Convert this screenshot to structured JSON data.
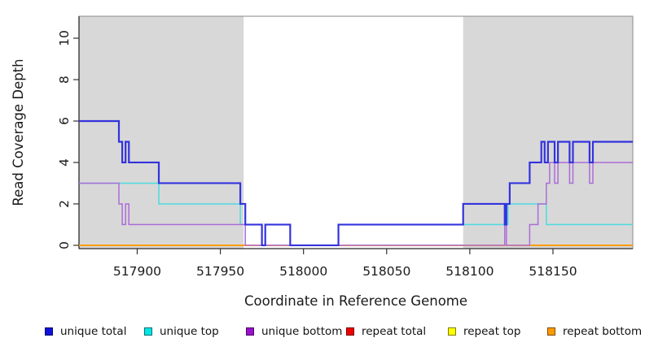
{
  "chart_data": {
    "type": "line",
    "subtype": "step-coverage",
    "x_title": "Coordinate in Reference Genome",
    "y_title": "Read Coverage Depth",
    "xlim": [
      517865,
      518198
    ],
    "ylim": [
      -0.16,
      11.06
    ],
    "x_ticks": [
      517900,
      517950,
      518000,
      518050,
      518100,
      518150
    ],
    "y_ticks": [
      0,
      2,
      4,
      6,
      8,
      10
    ],
    "grid": false,
    "legend_position": "bottom",
    "plot_bg": "#ffffff",
    "shaded_regions": [
      {
        "name": "left-shaded-region",
        "from": 517865,
        "to": 517964,
        "color": "#d8d8d8"
      },
      {
        "name": "right-shaded-region",
        "from": 518096,
        "to": 518198,
        "color": "#d8d8d8"
      }
    ],
    "box_color": "#999999",
    "axis_color": "#333333",
    "series": [
      {
        "name": "repeat top",
        "color": "#ffee00",
        "width": 1.5,
        "steps": [
          [
            517865,
            0
          ]
        ]
      },
      {
        "name": "repeat total",
        "color": "#d75f6d",
        "width": 1.5,
        "steps": [
          [
            517865,
            0
          ]
        ],
        "visible_range": [
          517964,
          518096
        ]
      },
      {
        "name": "repeat bottom",
        "color": "#ff9800",
        "width": 1.8,
        "steps": [
          [
            517865,
            0
          ]
        ]
      },
      {
        "name": "unique top",
        "color": "#4ddbe0",
        "width": 1.5,
        "steps": [
          [
            517865,
            3
          ],
          [
            517913,
            2
          ],
          [
            517962,
            1
          ],
          [
            517975,
            0
          ],
          [
            517977,
            1
          ],
          [
            517992,
            0
          ],
          [
            518021,
            1
          ],
          [
            518123,
            2
          ],
          [
            518146,
            1
          ]
        ]
      },
      {
        "name": "unique bottom",
        "color": "#ab6cd8",
        "width": 1.5,
        "steps": [
          [
            517865,
            3
          ],
          [
            517889,
            2
          ],
          [
            517891,
            1
          ],
          [
            517893,
            2
          ],
          [
            517895,
            1
          ],
          [
            517965,
            0
          ],
          [
            518121,
            1
          ],
          [
            518122,
            0
          ],
          [
            518136,
            1
          ],
          [
            518141,
            2
          ],
          [
            518146,
            3
          ],
          [
            518148,
            4
          ],
          [
            518151,
            3
          ],
          [
            518153,
            4
          ],
          [
            518160,
            3
          ],
          [
            518162,
            4
          ],
          [
            518172,
            3
          ],
          [
            518174,
            4
          ]
        ]
      },
      {
        "name": "unique total",
        "color": "#3333dd",
        "width": 2.2,
        "steps": [
          [
            517865,
            6
          ],
          [
            517889,
            5
          ],
          [
            517891,
            4
          ],
          [
            517893,
            5
          ],
          [
            517895,
            4
          ],
          [
            517913,
            3
          ],
          [
            517962,
            2
          ],
          [
            517965,
            1
          ],
          [
            517975,
            0
          ],
          [
            517977,
            1
          ],
          [
            517992,
            0
          ],
          [
            518021,
            1
          ],
          [
            518096,
            2
          ],
          [
            518121,
            1
          ],
          [
            518122,
            2
          ],
          [
            518124,
            3
          ],
          [
            518136,
            4
          ],
          [
            518143,
            5
          ],
          [
            518145,
            4
          ],
          [
            518147,
            5
          ],
          [
            518151,
            4
          ],
          [
            518153,
            5
          ],
          [
            518160,
            4
          ],
          [
            518162,
            5
          ],
          [
            518172,
            4
          ],
          [
            518174,
            5
          ]
        ]
      }
    ]
  },
  "legend": {
    "items": [
      {
        "label": "unique total",
        "color": "#1111dd"
      },
      {
        "label": "unique top",
        "color": "#00e5e5"
      },
      {
        "label": "unique bottom",
        "color": "#9911cc"
      },
      {
        "label": "repeat total",
        "color": "#ee0000"
      },
      {
        "label": "repeat top",
        "color": "#ffff00"
      },
      {
        "label": "repeat bottom",
        "color": "#ff9900"
      }
    ]
  }
}
